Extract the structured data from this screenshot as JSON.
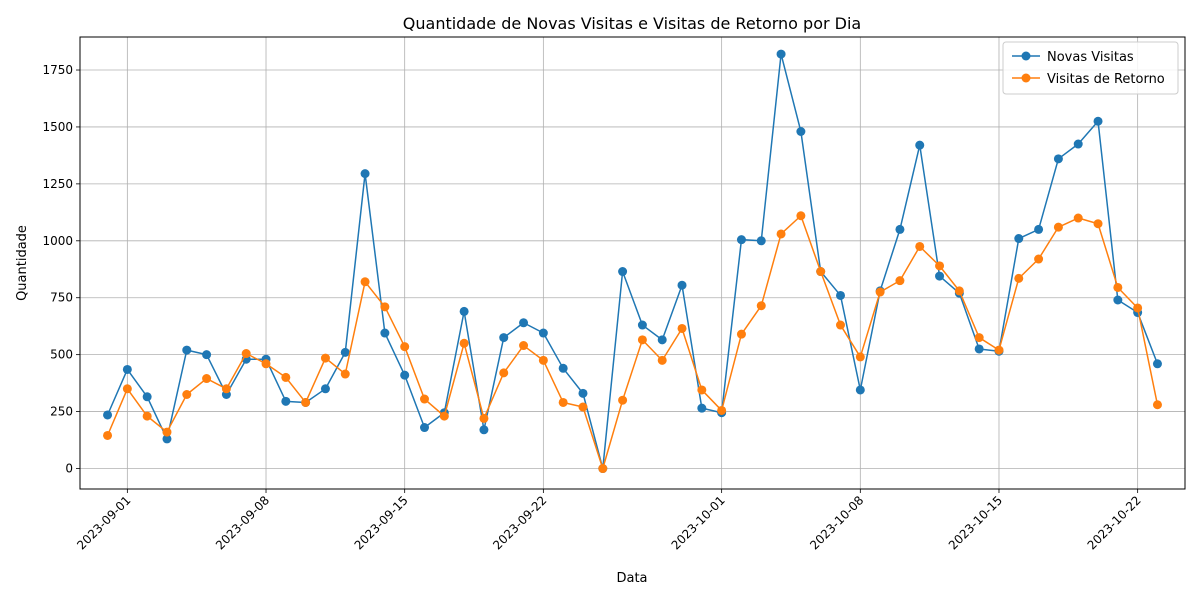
{
  "chart_data": {
    "type": "line",
    "title": "Quantidade de Novas Visitas e Visitas de Retorno por Dia",
    "xlabel": "Data",
    "ylabel": "Quantidade",
    "x_start": "2023-08-31",
    "x_ticks": [
      "2023-09-01",
      "2023-09-08",
      "2023-09-15",
      "2023-09-22",
      "2023-10-01",
      "2023-10-08",
      "2023-10-15",
      "2023-10-22"
    ],
    "y_ticks": [
      0,
      250,
      500,
      750,
      1000,
      1250,
      1500,
      1750
    ],
    "ylim": [
      -90,
      1895
    ],
    "grid": true,
    "legend_position": "top-right",
    "series": [
      {
        "name": "Novas Visitas",
        "color": "#1f77b4",
        "values": [
          235,
          435,
          315,
          130,
          520,
          500,
          325,
          480,
          480,
          295,
          290,
          350,
          510,
          1295,
          595,
          410,
          180,
          245,
          690,
          170,
          575,
          640,
          595,
          440,
          330,
          0,
          865,
          630,
          565,
          805,
          265,
          245,
          1005,
          1000,
          1820,
          1480,
          865,
          760,
          345,
          780,
          1050,
          1420,
          845,
          770,
          525,
          515,
          1010,
          1050,
          1360,
          1425,
          1525,
          740,
          685,
          460
        ]
      },
      {
        "name": "Visitas de Retorno",
        "color": "#ff7f0e",
        "values": [
          145,
          350,
          230,
          160,
          325,
          395,
          350,
          505,
          460,
          400,
          290,
          485,
          415,
          820,
          710,
          535,
          305,
          230,
          550,
          220,
          420,
          540,
          475,
          290,
          270,
          0,
          300,
          565,
          475,
          615,
          345,
          255,
          590,
          715,
          1030,
          1110,
          865,
          630,
          490,
          775,
          825,
          975,
          890,
          780,
          575,
          520,
          835,
          920,
          1060,
          1100,
          1075,
          795,
          705,
          280
        ]
      }
    ]
  }
}
